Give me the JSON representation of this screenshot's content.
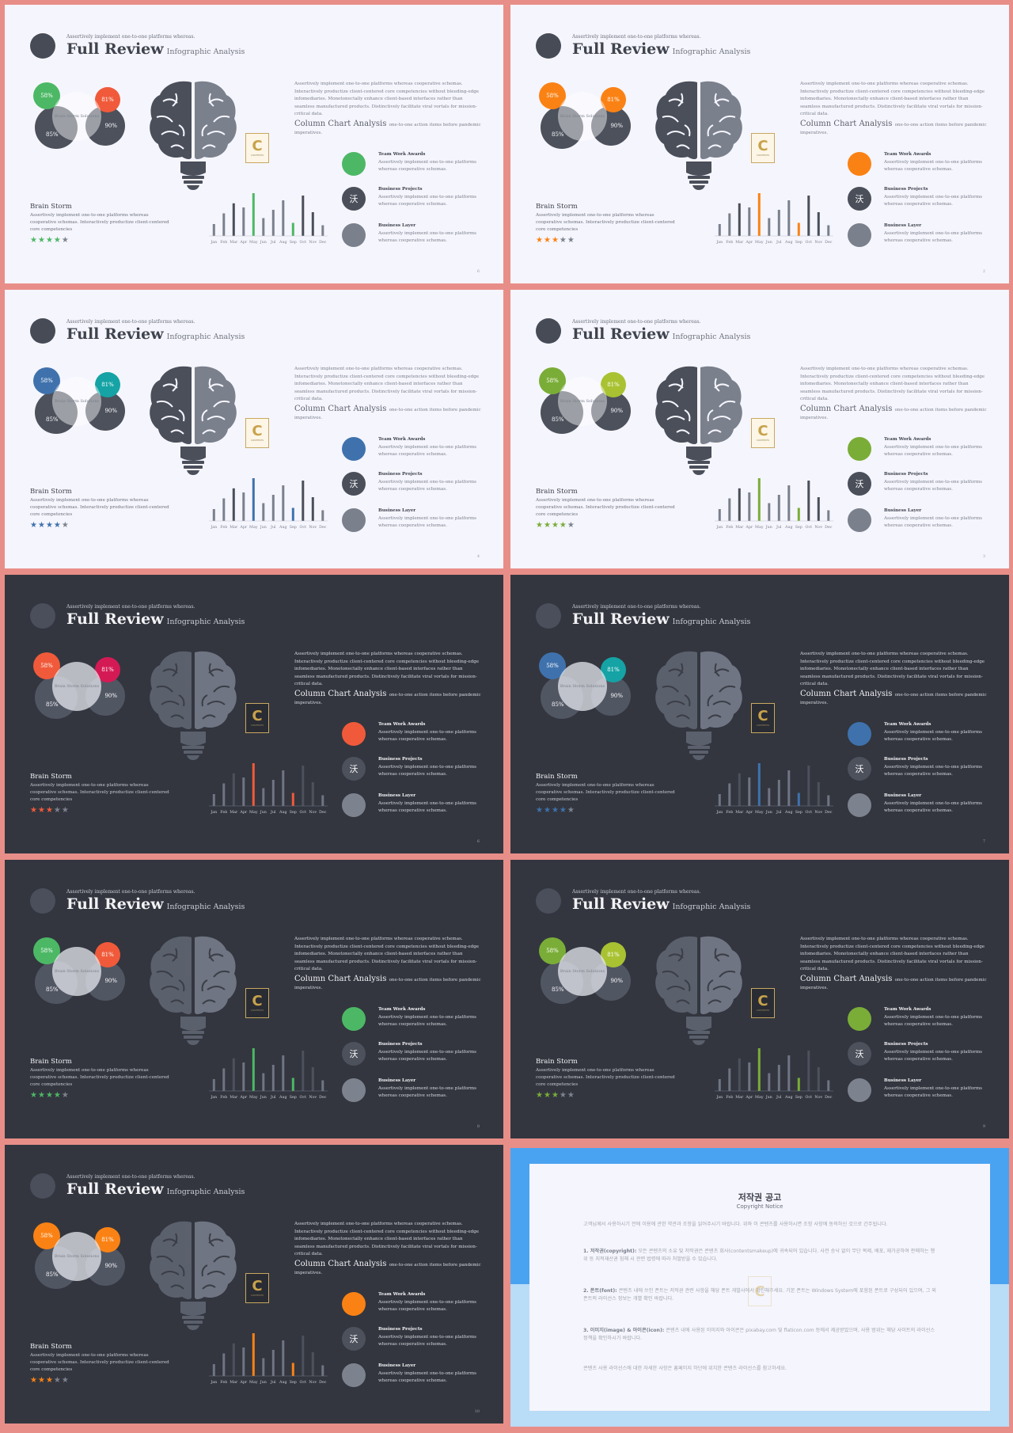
{
  "slide_text": {
    "kicker": "Assertively implement one-to-one platforms whereas.",
    "title": "Full Review",
    "subtitle": "Infographic Analysis",
    "circle_left_pct": "58%",
    "circle_right_pct": "81%",
    "circle_bottom_left_pct": "85%",
    "circle_bottom_right_pct": "90%",
    "overlap_label": "Brain Storm Solutions",
    "brainstorm_title": "Brain Storm",
    "brainstorm_body": "Assertively implement one-to-one platforms whereas cooperative schemas. Interactively productize client-centered core competencies",
    "right_desc": "Assertively implement one-to-one platforms whereas cooperative schemas. Interactively productize client-centered core competencies without bleeding-edge infomediaries. Monotonectally enhance client-based interfaces rather than seamless manufactured products. Distinctively facilitate viral vortals for mission-critical data.",
    "chart_title": "Column Chart Analysis",
    "chart_title_note": "one-to-one action items before pandemic",
    "chart_title_note2": "imperatives.",
    "items": [
      {
        "title": "Team Work Awards",
        "body": "Assertively implement one-to-one platforms whereas cooperative schemas.",
        "icon": "circle-icon"
      },
      {
        "title": "Business Projects",
        "body": "Assertively implement one-to-one platforms whereas cooperative schemas.",
        "glyph": "沃",
        "icon": "symbol-icon"
      },
      {
        "title": "Business Layer",
        "body": "Assertively implement one-to-one platforms whereas cooperative schemas.",
        "icon": "circle-icon"
      }
    ],
    "logo_letter": "C",
    "logo_text": "CONTENTS",
    "star_glyph": "★"
  },
  "chart_data": {
    "type": "bar",
    "categories": [
      "Jan",
      "Feb",
      "Mar",
      "Apr",
      "May",
      "Jun",
      "Jul",
      "Aug",
      "Sep",
      "Oct",
      "Nov",
      "Dec"
    ],
    "values": [
      20,
      38,
      55,
      48,
      72,
      30,
      44,
      60,
      22,
      68,
      40,
      18
    ],
    "highlight_index": 4,
    "secondary_index": 8,
    "dark_index": 9
  },
  "slides": [
    {
      "theme": "light",
      "accent": "#4cb865",
      "accent2": "#f05a3a",
      "stars_on": 4,
      "page": "6"
    },
    {
      "theme": "light",
      "accent": "#fa8214",
      "accent2": "#fa8214",
      "stars_on": 3,
      "page": "2"
    },
    {
      "theme": "light",
      "accent": "#3f72ad",
      "accent2": "#15a3a5",
      "stars_on": 4,
      "page": "4"
    },
    {
      "theme": "light",
      "accent": "#7aad37",
      "accent2": "#a8c232",
      "stars_on": 4,
      "page": "3"
    },
    {
      "theme": "dark",
      "accent": "#f05a3a",
      "accent2": "#d41a55",
      "stars_on": 3,
      "page": "6"
    },
    {
      "theme": "dark",
      "accent": "#3f72ad",
      "accent2": "#15a3a5",
      "stars_on": 4,
      "page": "7"
    },
    {
      "theme": "dark",
      "accent": "#4cb865",
      "accent2": "#f05a3a",
      "stars_on": 4,
      "page": "8"
    },
    {
      "theme": "dark",
      "accent": "#7aad37",
      "accent2": "#a8c232",
      "stars_on": 3,
      "page": "9"
    },
    {
      "theme": "dark",
      "accent": "#fa8214",
      "accent2": "#fa8214",
      "stars_on": 3,
      "page": "10"
    }
  ],
  "notice": {
    "title": "저작권 공고",
    "subtitle": "Copyright Notice",
    "intro": "고객님께서 사용하시기 전에 이용에 관한 약관과 조항을 읽어주시기 바랍니다. 위와 이 콘텐츠를 사용하시면 조항 사항에 동의하신 것으로 간주됩니다.",
    "p1_head": "1. 저작권(copyright):",
    "p1": "모든 콘텐츠의 소유 및 저작권은 콘텐츠 회사(contentsmakeup)에 귀속되어 있습니다. 사전 승낙 없이 무단 복제, 배포, 재가공하여 판매하는 행위 등 지적재산권 침해 시 관련 법령에 따라 처벌받을 수 있습니다.",
    "p2_head": "2. 폰트(font):",
    "p2": "콘텐츠 내에 쓰인 폰트는 저작권 관련 사항을 해당 폰트 개발사에서 확인해주세요. 기본 폰트는 Windows System에 포함된 폰트로 구성되어 있으며, 그 외 폰트의 라이선스 정보는 개별 확인 바랍니다.",
    "p3_head": "3. 이미지(image) & 아이콘(icon):",
    "p3": "콘텐츠 내에 사용된 이미지와 아이콘은 pixabay.com 및 flaticon.com 등에서 제공받았으며, 사용 범위는 해당 사이트의 라이선스 정책을 확인하시기 바랍니다.",
    "outro": "콘텐츠 사용 라이선스에 대한 자세한 사항은 홈페이지 하단에 위치한 콘텐츠 라이선스를 참고하세요."
  }
}
